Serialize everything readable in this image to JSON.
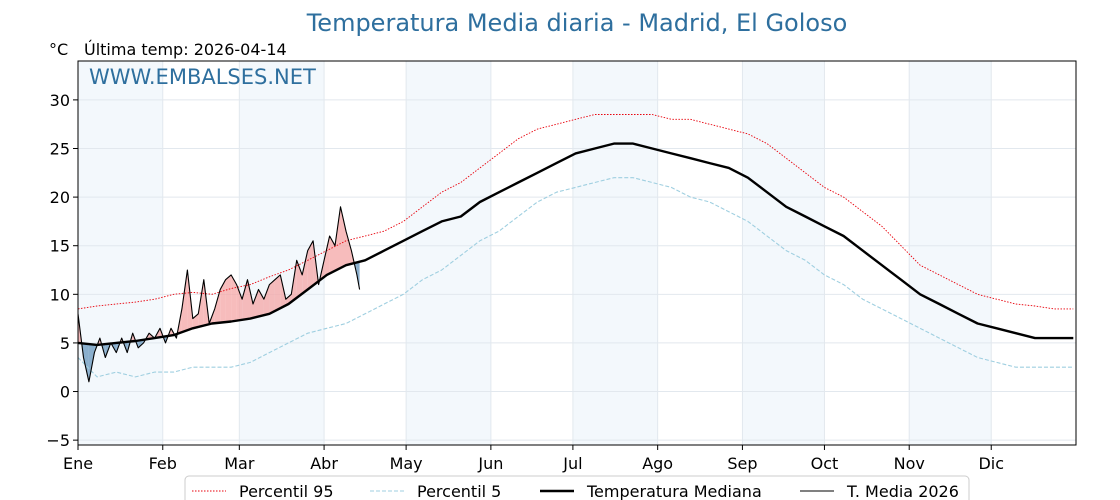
{
  "chart_data": {
    "type": "line",
    "title": "Temperatura Media diaria - Madrid, El Goloso",
    "unit": "°C",
    "subtitle": "Última temp: 2026-04-14",
    "watermark": "WWW.EMBALSES.NET",
    "ylim": [
      -5.5,
      34
    ],
    "yticks": [
      {
        "value": -5,
        "label": "−5"
      },
      {
        "value": 0,
        "label": "0"
      },
      {
        "value": 5,
        "label": "5"
      },
      {
        "value": 10,
        "label": "10"
      },
      {
        "value": 15,
        "label": "15"
      },
      {
        "value": 20,
        "label": "20"
      },
      {
        "value": 25,
        "label": "25"
      },
      {
        "value": 30,
        "label": "30"
      }
    ],
    "xlim": [
      1,
      366
    ],
    "months": [
      {
        "label": "Ene",
        "start": 1,
        "shaded": true
      },
      {
        "label": "Feb",
        "start": 32,
        "shaded": false
      },
      {
        "label": "Mar",
        "start": 60,
        "shaded": true
      },
      {
        "label": "Abr",
        "start": 91,
        "shaded": false
      },
      {
        "label": "May",
        "start": 121,
        "shaded": true
      },
      {
        "label": "Jun",
        "start": 152,
        "shaded": false
      },
      {
        "label": "Jul",
        "start": 182,
        "shaded": true
      },
      {
        "label": "Ago",
        "start": 213,
        "shaded": false
      },
      {
        "label": "Sep",
        "start": 244,
        "shaded": true
      },
      {
        "label": "Oct",
        "start": 274,
        "shaded": false
      },
      {
        "label": "Nov",
        "start": 305,
        "shaded": true
      },
      {
        "label": "Dic",
        "start": 335,
        "shaded": false
      }
    ],
    "grid": true,
    "legend_position": "bottom",
    "series": [
      {
        "name": "Percentil 95",
        "color": "#e8000b",
        "style": "dotted",
        "x": [
          1,
          8,
          15,
          22,
          29,
          36,
          43,
          50,
          57,
          64,
          71,
          78,
          85,
          92,
          99,
          106,
          113,
          120,
          127,
          134,
          141,
          148,
          155,
          162,
          169,
          176,
          183,
          190,
          197,
          204,
          211,
          218,
          225,
          232,
          239,
          246,
          253,
          260,
          267,
          274,
          281,
          288,
          295,
          302,
          309,
          316,
          323,
          330,
          337,
          344,
          351,
          358,
          365
        ],
        "values": [
          8.5,
          8.8,
          9.0,
          9.2,
          9.5,
          10.0,
          10.2,
          10.0,
          10.6,
          11.0,
          11.8,
          12.5,
          13.5,
          14.5,
          15.5,
          16.0,
          16.5,
          17.5,
          19.0,
          20.5,
          21.5,
          23.0,
          24.5,
          26.0,
          27.0,
          27.5,
          28.0,
          28.5,
          28.5,
          28.5,
          28.5,
          28.0,
          28.0,
          27.5,
          27.0,
          26.5,
          25.5,
          24.0,
          22.5,
          21.0,
          20.0,
          18.5,
          17.0,
          15.0,
          13.0,
          12.0,
          11.0,
          10.0,
          9.5,
          9.0,
          8.8,
          8.5,
          8.5
        ]
      },
      {
        "name": "Percentil 5",
        "color": "#9fcfe0",
        "style": "dashed",
        "x": [
          1,
          8,
          15,
          22,
          29,
          36,
          43,
          50,
          57,
          64,
          71,
          78,
          85,
          92,
          99,
          106,
          113,
          120,
          127,
          134,
          141,
          148,
          155,
          162,
          169,
          176,
          183,
          190,
          197,
          204,
          211,
          218,
          225,
          232,
          239,
          246,
          253,
          260,
          267,
          274,
          281,
          288,
          295,
          302,
          309,
          316,
          323,
          330,
          337,
          344,
          351,
          358,
          365
        ],
        "values": [
          3.5,
          1.5,
          2.0,
          1.5,
          2.0,
          2.0,
          2.5,
          2.5,
          2.5,
          3.0,
          4.0,
          5.0,
          6.0,
          6.5,
          7.0,
          8.0,
          9.0,
          10.0,
          11.5,
          12.5,
          14.0,
          15.5,
          16.5,
          18.0,
          19.5,
          20.5,
          21.0,
          21.5,
          22.0,
          22.0,
          21.5,
          21.0,
          20.0,
          19.5,
          18.5,
          17.5,
          16.0,
          14.5,
          13.5,
          12.0,
          11.0,
          9.5,
          8.5,
          7.5,
          6.5,
          5.5,
          4.5,
          3.5,
          3.0,
          2.5,
          2.5,
          2.5,
          2.5
        ]
      },
      {
        "name": "Temperatura Mediana",
        "color": "#000000",
        "style": "thick",
        "x": [
          1,
          8,
          15,
          22,
          29,
          36,
          43,
          50,
          57,
          64,
          71,
          78,
          85,
          92,
          99,
          106,
          113,
          120,
          127,
          134,
          141,
          148,
          155,
          162,
          169,
          176,
          183,
          190,
          197,
          204,
          211,
          218,
          225,
          232,
          239,
          246,
          253,
          260,
          267,
          274,
          281,
          288,
          295,
          302,
          309,
          316,
          323,
          330,
          337,
          344,
          351,
          358,
          365
        ],
        "values": [
          5.0,
          4.8,
          5.0,
          5.2,
          5.5,
          5.8,
          6.5,
          7.0,
          7.2,
          7.5,
          8.0,
          9.0,
          10.5,
          12.0,
          13.0,
          13.5,
          14.5,
          15.5,
          16.5,
          17.5,
          18.0,
          19.5,
          20.5,
          21.5,
          22.5,
          23.5,
          24.5,
          25.0,
          25.5,
          25.5,
          25.0,
          24.5,
          24.0,
          23.5,
          23.0,
          22.0,
          20.5,
          19.0,
          18.0,
          17.0,
          16.0,
          14.5,
          13.0,
          11.5,
          10.0,
          9.0,
          8.0,
          7.0,
          6.5,
          6.0,
          5.5,
          5.5,
          5.5
        ]
      },
      {
        "name": "T. Media 2026",
        "color": "#000000",
        "style": "thin",
        "x": [
          1,
          3,
          5,
          7,
          9,
          11,
          13,
          15,
          17,
          19,
          21,
          23,
          25,
          27,
          29,
          31,
          33,
          35,
          37,
          39,
          41,
          43,
          45,
          47,
          49,
          51,
          53,
          55,
          57,
          59,
          61,
          63,
          65,
          67,
          69,
          71,
          73,
          75,
          77,
          79,
          81,
          83,
          85,
          87,
          89,
          91,
          93,
          95,
          97,
          99,
          101,
          103,
          104
        ],
        "values": [
          8.0,
          3.5,
          1.0,
          4.0,
          5.5,
          3.5,
          5.0,
          4.0,
          5.5,
          4.0,
          6.0,
          4.5,
          5.0,
          6.0,
          5.5,
          6.5,
          5.0,
          6.5,
          5.5,
          8.5,
          12.5,
          7.5,
          8.0,
          11.5,
          7.0,
          8.5,
          10.5,
          11.5,
          12.0,
          11.0,
          9.5,
          11.5,
          9.0,
          10.5,
          9.5,
          11.0,
          11.5,
          12.0,
          9.5,
          10.0,
          13.5,
          12.0,
          14.5,
          15.5,
          11.0,
          13.5,
          16.0,
          15.0,
          19.0,
          16.5,
          14.5,
          12.0,
          10.5
        ]
      }
    ]
  }
}
